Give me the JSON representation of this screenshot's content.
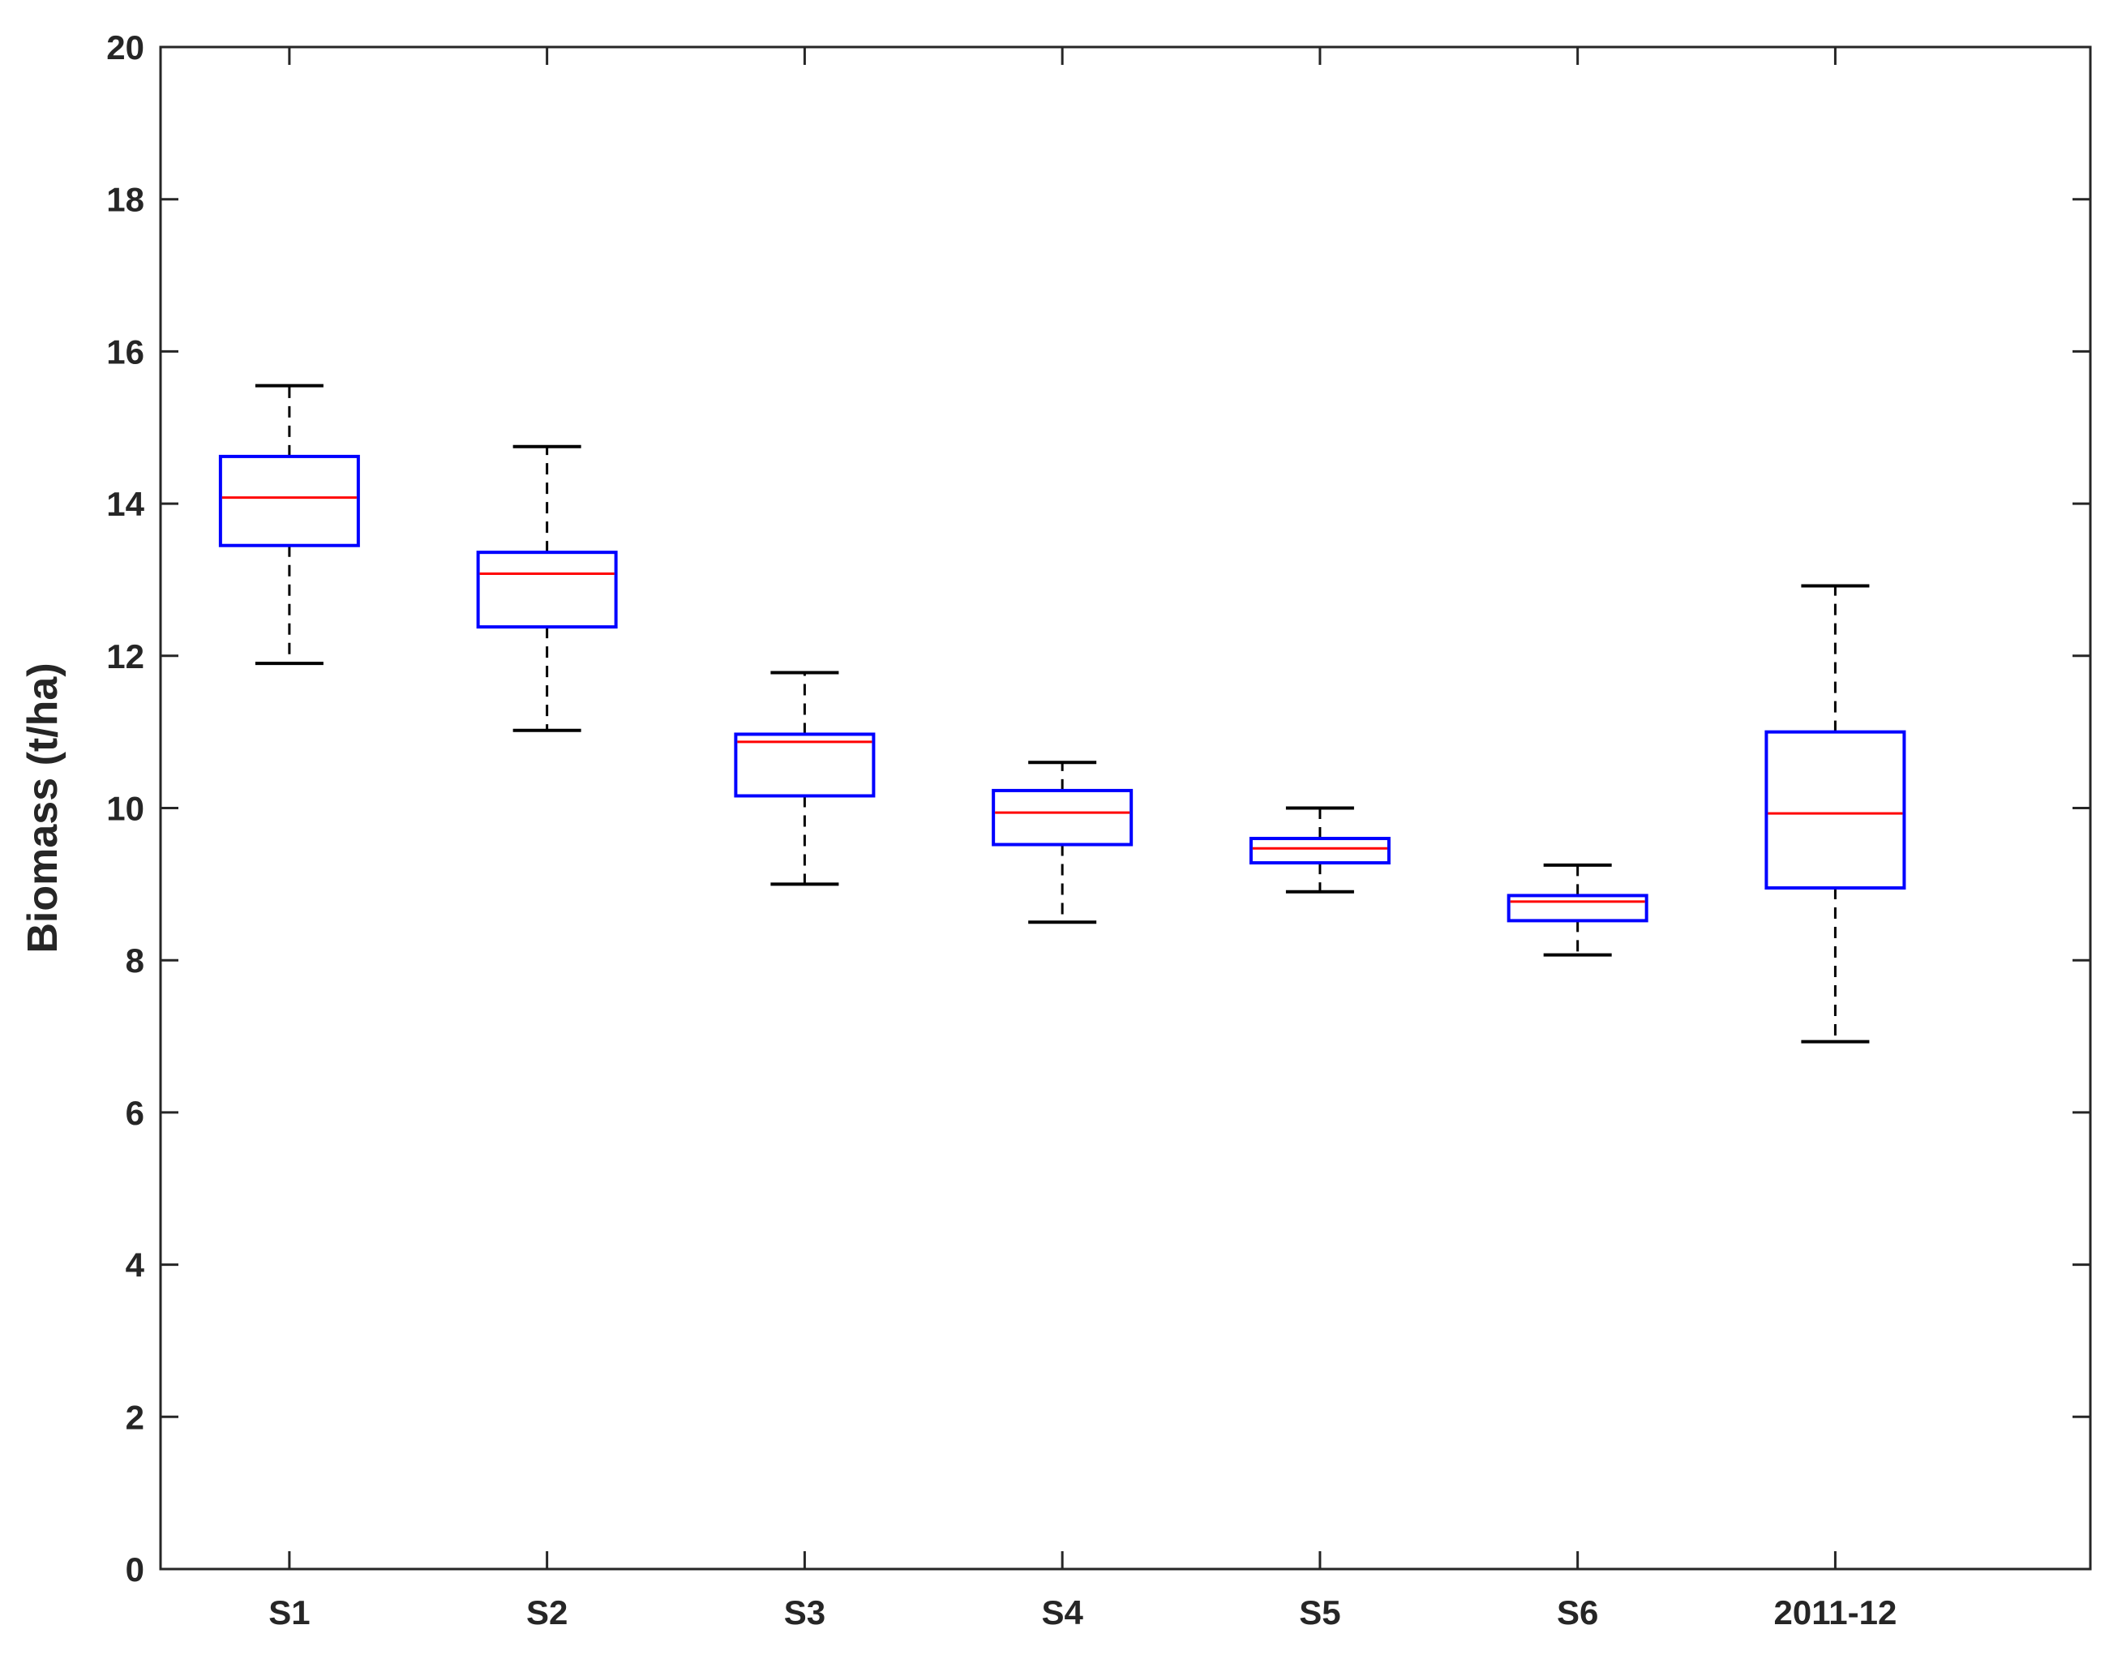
{
  "chart_data": {
    "type": "box",
    "ylabel": "Biomass (t/ha)",
    "xlabel": "",
    "title": "",
    "ylim": [
      0,
      20
    ],
    "yticks": [
      0,
      2,
      4,
      6,
      8,
      10,
      12,
      14,
      16,
      18,
      20
    ],
    "grid": false,
    "categories": [
      "S1",
      "S2",
      "S3",
      "S4",
      "S5",
      "S6",
      "2011-12"
    ],
    "boxes": [
      {
        "category": "S1",
        "whisker_low": 11.9,
        "q1": 13.45,
        "median": 14.08,
        "q3": 14.62,
        "whisker_high": 15.55
      },
      {
        "category": "S2",
        "whisker_low": 11.02,
        "q1": 12.38,
        "median": 13.08,
        "q3": 13.36,
        "whisker_high": 14.75
      },
      {
        "category": "S3",
        "whisker_low": 9.0,
        "q1": 10.16,
        "median": 10.87,
        "q3": 10.97,
        "whisker_high": 11.78
      },
      {
        "category": "S4",
        "whisker_low": 8.5,
        "q1": 9.52,
        "median": 9.94,
        "q3": 10.23,
        "whisker_high": 10.6
      },
      {
        "category": "S5",
        "whisker_low": 8.9,
        "q1": 9.28,
        "median": 9.47,
        "q3": 9.6,
        "whisker_high": 10.0
      },
      {
        "category": "S6",
        "whisker_low": 8.07,
        "q1": 8.52,
        "median": 8.77,
        "q3": 8.85,
        "whisker_high": 9.25
      },
      {
        "category": "2011-12",
        "whisker_low": 6.93,
        "q1": 8.95,
        "median": 9.93,
        "q3": 11.0,
        "whisker_high": 12.92
      }
    ],
    "colors": {
      "box": "#0000ff",
      "median": "#ff0000",
      "whisker": "#000000",
      "axis": "#262626"
    }
  }
}
